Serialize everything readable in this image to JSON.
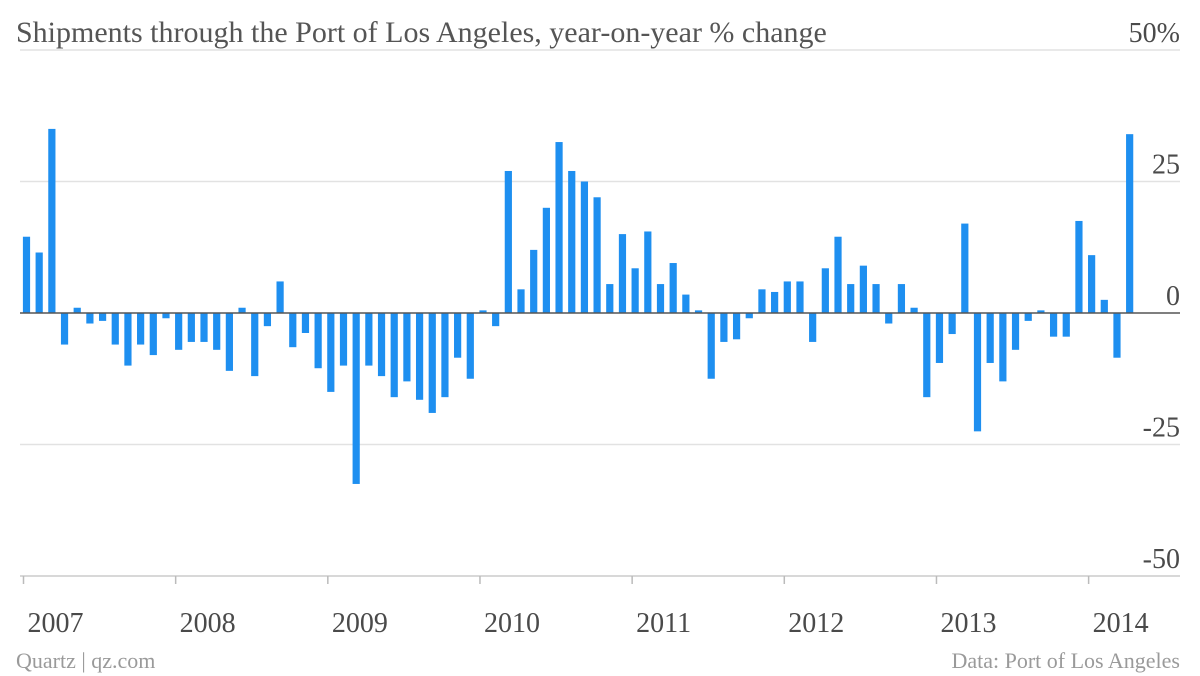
{
  "chart_data": {
    "type": "bar",
    "title": "Shipments through the Port of Los Angeles, year-on-year % change",
    "ylabel": "",
    "xlabel": "",
    "y_unit": "%",
    "ylim": [
      -50,
      50
    ],
    "y_ticks": [
      "50%",
      "25",
      "0",
      "-25",
      "-50"
    ],
    "x_ticks": [
      "2007",
      "2008",
      "2009",
      "2010",
      "2011",
      "2012",
      "2013",
      "2014"
    ],
    "grid": true,
    "bar_color": "#1e8ff0",
    "series": [
      {
        "values": [
          14.5,
          11.5,
          35,
          -6,
          1,
          -2,
          -1.5,
          -6,
          -10,
          -6,
          -8,
          -1,
          -7,
          -5.5,
          -5.5,
          -7,
          -11,
          1,
          -12,
          -2.5,
          6,
          -6.5,
          -3.8,
          -10.5,
          -15,
          -10,
          -32.5,
          -10,
          -12,
          -16,
          -13,
          -16.5,
          -19,
          -16,
          -8.5,
          -12.5,
          0.5,
          -2.5,
          27,
          4.5,
          12,
          20,
          32.5,
          27,
          25,
          22,
          5.5,
          15,
          8.5,
          15.5,
          5.5,
          9.5,
          3.5,
          0.5,
          -12.5,
          -5.5,
          -5,
          -1,
          4.5,
          4,
          6,
          6,
          -5.5,
          8.5,
          14.5,
          5.5,
          9,
          5.5,
          -2,
          5.5,
          1,
          -16,
          -9.5,
          -4,
          17,
          -22.5,
          -9.5,
          -13,
          -7,
          -1.5,
          0.5,
          -4.5,
          -4.5,
          17.5,
          11,
          2.5,
          -8.5,
          34
        ]
      }
    ],
    "first_period": "2007-01",
    "last_period": "2014-04"
  },
  "footer": {
    "source_left": "Quartz | qz.com",
    "source_right": "Data: Port of Los Angeles"
  }
}
